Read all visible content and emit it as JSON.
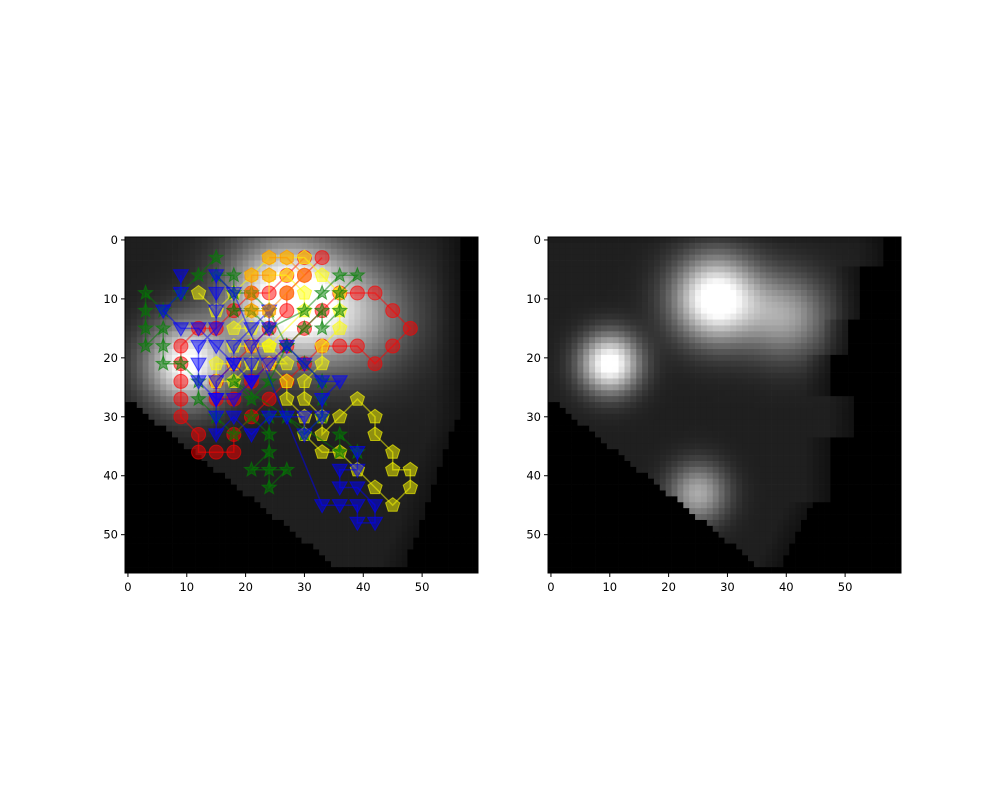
{
  "chart_data": [
    {
      "type": "heatmap",
      "panel": "left",
      "image_shape": [
        57,
        60
      ],
      "colormap": "gray",
      "xticks": [
        0,
        10,
        20,
        30,
        40,
        50
      ],
      "yticks": [
        0,
        10,
        20,
        30,
        40,
        50
      ],
      "xlim": [
        -0.5,
        59.5
      ],
      "ylim": [
        56.5,
        -0.5
      ],
      "blobs": [
        {
          "x": 27,
          "y": 10,
          "sigma": 7,
          "amp": 1.0
        },
        {
          "x": 10,
          "y": 21,
          "sigma": 5,
          "amp": 0.9
        },
        {
          "x": 39,
          "y": 13,
          "sigma": 7,
          "amp": 0.45
        }
      ],
      "trajectories": [
        {
          "marker": "circle",
          "color": "#ff0000",
          "points": [
            [
              33,
              3
            ],
            [
              30,
              6
            ],
            [
              27,
              9
            ],
            [
              27,
              12
            ],
            [
              24,
              15
            ],
            [
              21,
              18
            ],
            [
              18,
              21
            ],
            [
              15,
              24
            ],
            [
              15,
              27
            ],
            [
              18,
              27
            ],
            [
              21,
              24
            ],
            [
              24,
              21
            ],
            [
              27,
              18
            ],
            [
              30,
              15
            ],
            [
              33,
              12
            ],
            [
              36,
              9
            ],
            [
              39,
              9
            ],
            [
              42,
              9
            ],
            [
              45,
              12
            ],
            [
              48,
              15
            ],
            [
              45,
              18
            ],
            [
              42,
              21
            ],
            [
              39,
              18
            ],
            [
              36,
              18
            ],
            [
              33,
              18
            ],
            [
              30,
              21
            ],
            [
              27,
              24
            ],
            [
              24,
              27
            ],
            [
              21,
              30
            ],
            [
              18,
              33
            ],
            [
              18,
              36
            ],
            [
              15,
              36
            ],
            [
              12,
              36
            ],
            [
              12,
              33
            ],
            [
              9,
              30
            ],
            [
              9,
              27
            ],
            [
              9,
              24
            ],
            [
              9,
              21
            ],
            [
              9,
              18
            ],
            [
              12,
              15
            ],
            [
              15,
              15
            ],
            [
              18,
              12
            ],
            [
              21,
              9
            ],
            [
              24,
              9
            ],
            [
              27,
              6
            ],
            [
              30,
              3
            ]
          ]
        },
        {
          "marker": "pentagon",
          "color": "#ffff00",
          "points": [
            [
              12,
              9
            ],
            [
              15,
              12
            ],
            [
              18,
              9
            ],
            [
              21,
              6
            ],
            [
              24,
              3
            ],
            [
              27,
              3
            ],
            [
              30,
              3
            ],
            [
              33,
              6
            ],
            [
              36,
              9
            ],
            [
              36,
              12
            ],
            [
              36,
              15
            ],
            [
              33,
              18
            ],
            [
              33,
              21
            ],
            [
              30,
              24
            ],
            [
              30,
              27
            ],
            [
              33,
              30
            ],
            [
              33,
              33
            ],
            [
              36,
              30
            ],
            [
              39,
              27
            ],
            [
              42,
              30
            ],
            [
              42,
              33
            ],
            [
              45,
              36
            ],
            [
              45,
              39
            ],
            [
              48,
              39
            ],
            [
              48,
              42
            ],
            [
              45,
              45
            ],
            [
              42,
              42
            ],
            [
              39,
              39
            ],
            [
              36,
              36
            ],
            [
              33,
              36
            ],
            [
              30,
              33
            ],
            [
              30,
              30
            ],
            [
              27,
              27
            ],
            [
              27,
              24
            ],
            [
              24,
              21
            ],
            [
              27,
              21
            ],
            [
              24,
              18
            ],
            [
              21,
              18
            ],
            [
              18,
              18
            ],
            [
              18,
              21
            ],
            [
              15,
              21
            ],
            [
              15,
              24
            ],
            [
              18,
              24
            ],
            [
              21,
              21
            ],
            [
              21,
              15
            ],
            [
              18,
              15
            ],
            [
              21,
              12
            ],
            [
              24,
              12
            ],
            [
              24,
              6
            ],
            [
              27,
              6
            ],
            [
              30,
              9
            ],
            [
              30,
              12
            ],
            [
              24,
              18
            ]
          ]
        },
        {
          "marker": "star",
          "color": "#008000",
          "points": [
            [
              15,
              3
            ],
            [
              12,
              6
            ],
            [
              9,
              9
            ],
            [
              6,
              12
            ],
            [
              3,
              9
            ],
            [
              3,
              12
            ],
            [
              3,
              15
            ],
            [
              3,
              18
            ],
            [
              6,
              15
            ],
            [
              6,
              18
            ],
            [
              6,
              21
            ],
            [
              9,
              21
            ],
            [
              12,
              24
            ],
            [
              12,
              27
            ],
            [
              15,
              30
            ],
            [
              18,
              33
            ],
            [
              21,
              30
            ],
            [
              24,
              33
            ],
            [
              24,
              36
            ],
            [
              21,
              39
            ],
            [
              24,
              39
            ],
            [
              27,
              39
            ],
            [
              24,
              42
            ],
            [
              24,
              30
            ],
            [
              27,
              30
            ],
            [
              30,
              33
            ],
            [
              33,
              30
            ],
            [
              33,
              27
            ],
            [
              33,
              24
            ],
            [
              30,
              21
            ],
            [
              27,
              18
            ],
            [
              30,
              15
            ],
            [
              33,
              12
            ],
            [
              33,
              15
            ],
            [
              36,
              12
            ],
            [
              36,
              9
            ],
            [
              39,
              6
            ],
            [
              36,
              6
            ],
            [
              33,
              9
            ],
            [
              30,
              12
            ],
            [
              24,
              15
            ],
            [
              21,
              12
            ],
            [
              18,
              12
            ],
            [
              18,
              6
            ],
            [
              15,
              6
            ],
            [
              18,
              9
            ],
            [
              21,
              9
            ],
            [
              24,
              12
            ],
            [
              27,
              18
            ],
            [
              24,
              24
            ],
            [
              21,
              27
            ],
            [
              18,
              24
            ],
            [
              36,
              36
            ],
            [
              36,
              33
            ],
            [
              39,
              36
            ]
          ]
        },
        {
          "marker": "triangle_down",
          "color": "#0000ff",
          "points": [
            [
              9,
              6
            ],
            [
              9,
              9
            ],
            [
              6,
              12
            ],
            [
              9,
              15
            ],
            [
              12,
              15
            ],
            [
              15,
              18
            ],
            [
              18,
              21
            ],
            [
              21,
              24
            ],
            [
              21,
              21
            ],
            [
              21,
              18
            ],
            [
              24,
              15
            ],
            [
              24,
              12
            ],
            [
              21,
              15
            ],
            [
              18,
              18
            ],
            [
              18,
              21
            ],
            [
              15,
              24
            ],
            [
              15,
              27
            ],
            [
              15,
              30
            ],
            [
              15,
              33
            ],
            [
              18,
              30
            ],
            [
              21,
              33
            ],
            [
              24,
              30
            ],
            [
              27,
              30
            ],
            [
              30,
              30
            ],
            [
              30,
              33
            ],
            [
              33,
              30
            ],
            [
              33,
              27
            ],
            [
              36,
              24
            ],
            [
              33,
              24
            ],
            [
              30,
              21
            ],
            [
              27,
              18
            ],
            [
              24,
              21
            ],
            [
              21,
              24
            ],
            [
              18,
              27
            ],
            [
              15,
              27
            ],
            [
              12,
              24
            ],
            [
              12,
              21
            ],
            [
              12,
              18
            ],
            [
              15,
              15
            ],
            [
              15,
              12
            ],
            [
              15,
              9
            ],
            [
              15,
              6
            ],
            [
              18,
              9
            ],
            [
              33,
              45
            ],
            [
              36,
              45
            ],
            [
              39,
              45
            ],
            [
              39,
              48
            ],
            [
              42,
              48
            ],
            [
              42,
              45
            ],
            [
              39,
              42
            ],
            [
              36,
              42
            ],
            [
              36,
              39
            ],
            [
              39,
              39
            ],
            [
              39,
              36
            ]
          ]
        },
        {
          "marker": "hexagon",
          "color": "#ff8c00",
          "points": [
            [
              24,
              3
            ],
            [
              27,
              3
            ],
            [
              30,
              6
            ],
            [
              27,
              9
            ],
            [
              24,
              12
            ],
            [
              21,
              12
            ],
            [
              21,
              9
            ],
            [
              21,
              6
            ],
            [
              24,
              6
            ]
          ]
        }
      ]
    },
    {
      "type": "heatmap",
      "panel": "right",
      "image_shape": [
        57,
        60
      ],
      "colormap": "gray",
      "xticks": [
        0,
        10,
        20,
        30,
        40,
        50
      ],
      "yticks": [
        0,
        10,
        20,
        30,
        40,
        50
      ],
      "xlim": [
        -0.5,
        59.5
      ],
      "ylim": [
        56.5,
        -0.5
      ],
      "blobs": [
        {
          "x": 28,
          "y": 10,
          "sigma": 5,
          "amp": 1.0
        },
        {
          "x": 10,
          "y": 21,
          "sigma": 3.5,
          "amp": 0.95
        },
        {
          "x": 40,
          "y": 13,
          "sigma": 5,
          "amp": 0.5
        },
        {
          "x": 25,
          "y": 43,
          "sigma": 3.5,
          "amp": 0.55
        }
      ]
    }
  ]
}
